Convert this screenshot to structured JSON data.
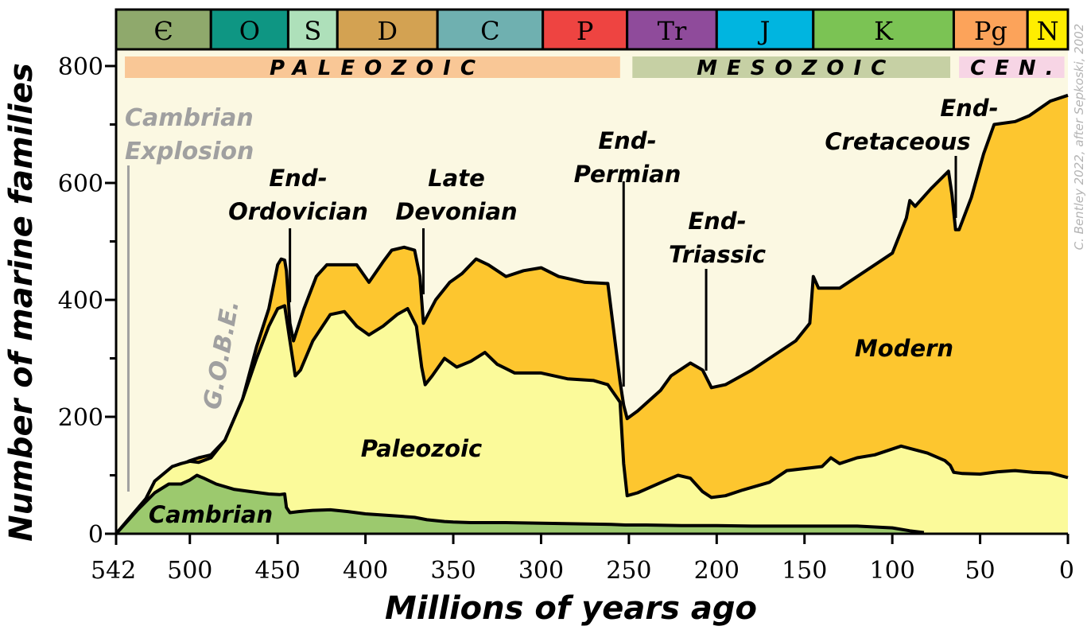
{
  "chart_data": {
    "type": "area",
    "title": "",
    "xlabel": "Millions of years ago",
    "ylabel": "Number of marine families",
    "xlim": [
      542,
      0
    ],
    "ylim": [
      0,
      800
    ],
    "xticks": [
      542,
      500,
      450,
      400,
      350,
      300,
      250,
      200,
      150,
      100,
      50,
      0
    ],
    "yticks": [
      0,
      200,
      400,
      600,
      800
    ],
    "credit": "C. Bentley 2022, after Sepkoski, 2002",
    "colors": {
      "background": "#fbf8e2",
      "cambrian": "#9cc96e",
      "paleozoic": "#fbfa9a",
      "modern": "#fdc62f",
      "outline": "#000000",
      "annotation_grey": "#a0a0a0"
    },
    "periods": [
      {
        "symbol": "Є",
        "start": 542,
        "end": 488,
        "color": "#8fa96c"
      },
      {
        "symbol": "O",
        "start": 488,
        "end": 444,
        "color": "#0e9683"
      },
      {
        "symbol": "S",
        "start": 444,
        "end": 416,
        "color": "#aee0ba"
      },
      {
        "symbol": "D",
        "start": 416,
        "end": 359,
        "color": "#d3a252"
      },
      {
        "symbol": "C",
        "start": 359,
        "end": 299,
        "color": "#6fb0b0"
      },
      {
        "symbol": "P",
        "start": 299,
        "end": 251,
        "color": "#ee4441"
      },
      {
        "symbol": "Tr",
        "start": 251,
        "end": 200,
        "color": "#8f4b9b"
      },
      {
        "symbol": "J",
        "start": 200,
        "end": 145,
        "color": "#00b5e0"
      },
      {
        "symbol": "K",
        "start": 145,
        "end": 65,
        "color": "#7bc354"
      },
      {
        "symbol": "Pg",
        "start": 65,
        "end": 23,
        "color": "#fca35a"
      },
      {
        "symbol": "N",
        "start": 23,
        "end": 0,
        "color": "#ffee00"
      }
    ],
    "eras": [
      {
        "label": "PALEOZOIC",
        "start": 537,
        "end": 255,
        "color": "#f9c796"
      },
      {
        "label": "MESOZOIC",
        "start": 248,
        "end": 67,
        "color": "#c6d0a4"
      },
      {
        "label": "CEN.",
        "start": 62,
        "end": 2,
        "color": "#f7d5e5"
      }
    ],
    "series": [
      {
        "name": "Cambrian",
        "label": "Cambrian",
        "values": [
          [
            542,
            0
          ],
          [
            530,
            40
          ],
          [
            520,
            70
          ],
          [
            512,
            85
          ],
          [
            505,
            85
          ],
          [
            500,
            92
          ],
          [
            496,
            100
          ],
          [
            492,
            95
          ],
          [
            485,
            85
          ],
          [
            475,
            76
          ],
          [
            465,
            72
          ],
          [
            455,
            68
          ],
          [
            449,
            67
          ],
          [
            446,
            68
          ],
          [
            445,
            45
          ],
          [
            443,
            36
          ],
          [
            438,
            38
          ],
          [
            430,
            40
          ],
          [
            420,
            41
          ],
          [
            410,
            38
          ],
          [
            400,
            34
          ],
          [
            390,
            32
          ],
          [
            380,
            30
          ],
          [
            372,
            28
          ],
          [
            365,
            24
          ],
          [
            355,
            21
          ],
          [
            350,
            20
          ],
          [
            340,
            19
          ],
          [
            320,
            19
          ],
          [
            300,
            18
          ],
          [
            280,
            17
          ],
          [
            260,
            16
          ],
          [
            252,
            15
          ],
          [
            240,
            15
          ],
          [
            220,
            14
          ],
          [
            200,
            14
          ],
          [
            180,
            13
          ],
          [
            160,
            13
          ],
          [
            140,
            13
          ],
          [
            120,
            13
          ],
          [
            100,
            10
          ],
          [
            90,
            5
          ],
          [
            82,
            2
          ]
        ]
      },
      {
        "name": "Paleozoic",
        "label": "Paleozoic",
        "values": [
          [
            542,
            0
          ],
          [
            525,
            60
          ],
          [
            520,
            90
          ],
          [
            510,
            115
          ],
          [
            505,
            120
          ],
          [
            500,
            124
          ],
          [
            495,
            122
          ],
          [
            488,
            130
          ],
          [
            480,
            160
          ],
          [
            470,
            230
          ],
          [
            462,
            300
          ],
          [
            455,
            355
          ],
          [
            450,
            385
          ],
          [
            446,
            390
          ],
          [
            443,
            330
          ],
          [
            440,
            270
          ],
          [
            437,
            280
          ],
          [
            430,
            330
          ],
          [
            420,
            375
          ],
          [
            412,
            380
          ],
          [
            405,
            355
          ],
          [
            398,
            340
          ],
          [
            390,
            355
          ],
          [
            382,
            375
          ],
          [
            376,
            385
          ],
          [
            371,
            355
          ],
          [
            368,
            285
          ],
          [
            366,
            255
          ],
          [
            362,
            270
          ],
          [
            355,
            300
          ],
          [
            348,
            285
          ],
          [
            340,
            295
          ],
          [
            332,
            310
          ],
          [
            325,
            290
          ],
          [
            315,
            275
          ],
          [
            300,
            275
          ],
          [
            285,
            265
          ],
          [
            270,
            262
          ],
          [
            262,
            255
          ],
          [
            255,
            225
          ],
          [
            253,
            120
          ],
          [
            251,
            65
          ],
          [
            245,
            70
          ],
          [
            230,
            90
          ],
          [
            222,
            100
          ],
          [
            215,
            95
          ],
          [
            208,
            72
          ],
          [
            203,
            62
          ],
          [
            195,
            65
          ],
          [
            185,
            75
          ],
          [
            170,
            88
          ],
          [
            160,
            108
          ],
          [
            140,
            115
          ],
          [
            135,
            130
          ],
          [
            130,
            120
          ],
          [
            120,
            130
          ],
          [
            110,
            135
          ],
          [
            95,
            150
          ],
          [
            80,
            138
          ],
          [
            70,
            125
          ],
          [
            67,
            117
          ],
          [
            65,
            105
          ],
          [
            60,
            103
          ],
          [
            50,
            102
          ],
          [
            40,
            106
          ],
          [
            30,
            108
          ],
          [
            20,
            105
          ],
          [
            10,
            104
          ],
          [
            0,
            96
          ]
        ]
      },
      {
        "name": "Modern",
        "label": "Modern",
        "values": [
          [
            542,
            0
          ],
          [
            525,
            60
          ],
          [
            520,
            90
          ],
          [
            510,
            115
          ],
          [
            505,
            118
          ],
          [
            500,
            125
          ],
          [
            495,
            130
          ],
          [
            488,
            135
          ],
          [
            480,
            160
          ],
          [
            470,
            230
          ],
          [
            462,
            320
          ],
          [
            455,
            385
          ],
          [
            450,
            460
          ],
          [
            448,
            470
          ],
          [
            446,
            468
          ],
          [
            445,
            450
          ],
          [
            443,
            360
          ],
          [
            441,
            330
          ],
          [
            435,
            385
          ],
          [
            428,
            440
          ],
          [
            422,
            460
          ],
          [
            415,
            460
          ],
          [
            405,
            460
          ],
          [
            398,
            430
          ],
          [
            390,
            465
          ],
          [
            385,
            485
          ],
          [
            378,
            490
          ],
          [
            372,
            485
          ],
          [
            369,
            440
          ],
          [
            367,
            360
          ],
          [
            360,
            400
          ],
          [
            352,
            430
          ],
          [
            345,
            445
          ],
          [
            337,
            470
          ],
          [
            330,
            460
          ],
          [
            320,
            440
          ],
          [
            310,
            450
          ],
          [
            300,
            455
          ],
          [
            290,
            440
          ],
          [
            275,
            430
          ],
          [
            262,
            428
          ],
          [
            255,
            260
          ],
          [
            253,
            220
          ],
          [
            251,
            197
          ],
          [
            245,
            210
          ],
          [
            232,
            245
          ],
          [
            226,
            270
          ],
          [
            215,
            292
          ],
          [
            208,
            280
          ],
          [
            203,
            250
          ],
          [
            195,
            255
          ],
          [
            180,
            280
          ],
          [
            170,
            300
          ],
          [
            155,
            330
          ],
          [
            147,
            360
          ],
          [
            145,
            440
          ],
          [
            142,
            420
          ],
          [
            130,
            420
          ],
          [
            110,
            460
          ],
          [
            100,
            480
          ],
          [
            92,
            540
          ],
          [
            90,
            570
          ],
          [
            87,
            560
          ],
          [
            78,
            590
          ],
          [
            68,
            620
          ],
          [
            66,
            580
          ],
          [
            64,
            520
          ],
          [
            62,
            520
          ],
          [
            55,
            575
          ],
          [
            48,
            650
          ],
          [
            42,
            700
          ],
          [
            30,
            705
          ],
          [
            22,
            715
          ],
          [
            10,
            740
          ],
          [
            0,
            750
          ]
        ]
      }
    ],
    "events": [
      {
        "label": "End-Ordovician",
        "lines": [
          "End-",
          "Ordovician"
        ],
        "x": 443
      },
      {
        "label": "Late Devonian",
        "lines": [
          "Late",
          "Devonian"
        ],
        "x": 367
      },
      {
        "label": "End-Permian",
        "lines": [
          "End-",
          "Permian"
        ],
        "x": 253
      },
      {
        "label": "End-Triassic",
        "lines": [
          "End-",
          "Triassic"
        ],
        "x": 206
      },
      {
        "label": "End-Cretaceous",
        "lines": [
          "End-",
          "Cretaceous"
        ],
        "x": 65
      }
    ],
    "annotations": [
      {
        "label": "Cambrian Explosion",
        "lines": [
          "Cambrian",
          "Explosion"
        ],
        "x": 535
      },
      {
        "label": "G.O.B.E.",
        "x": 470
      }
    ]
  }
}
